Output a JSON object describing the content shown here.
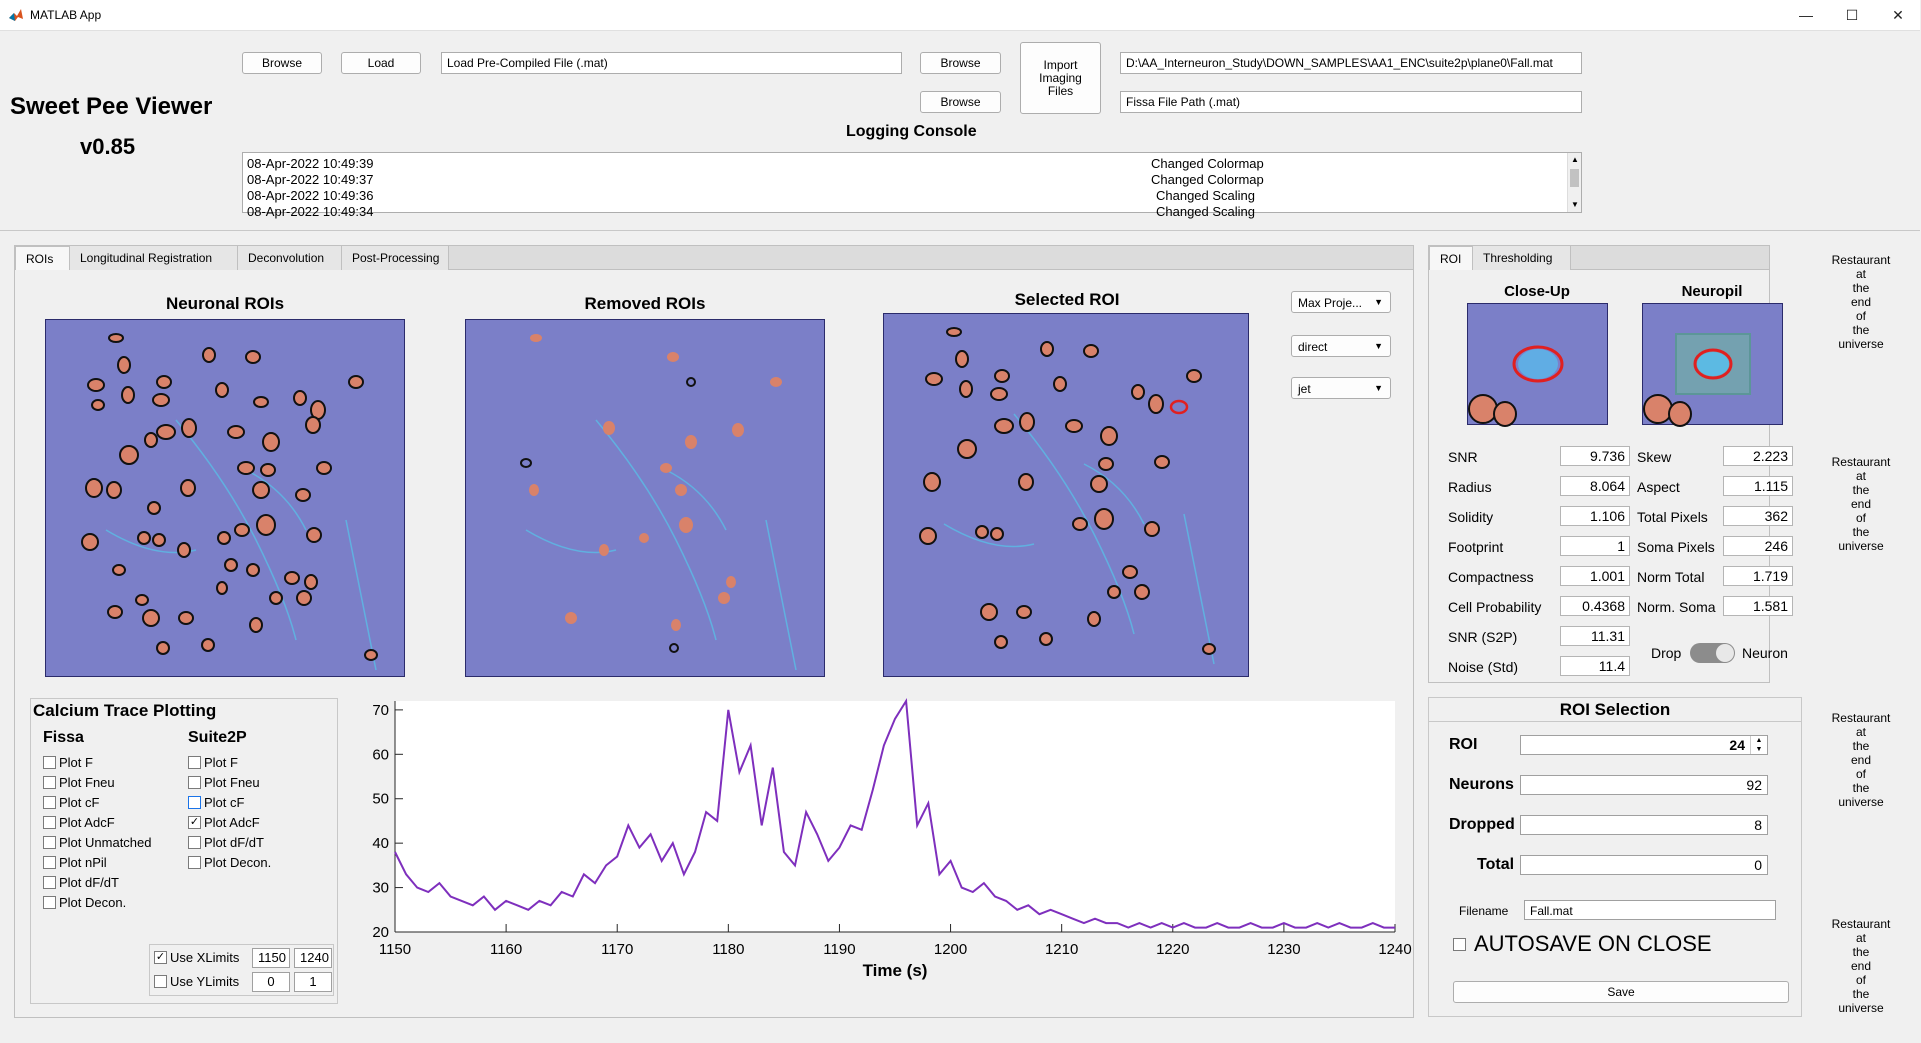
{
  "window": {
    "title": "MATLAB App",
    "minimize": "—",
    "maximize": "☐",
    "close": "✕"
  },
  "header": {
    "app_name": "Sweet Pee Viewer",
    "version": "v0.85",
    "browse_label": "Browse",
    "load_label": "Load",
    "precompiled_placeholder": "Load Pre-Compiled File (.mat)",
    "import_label_1": "Import",
    "import_label_2": "Imaging",
    "import_label_3": "Files",
    "suite2p_path": "D:\\AA_Interneuron_Study\\DOWN_SAMPLES\\AA1_ENC\\suite2p\\plane0\\Fall.mat",
    "fissa_path": "Fissa File Path (.mat)",
    "logging_title": "Logging Console"
  },
  "log": [
    {
      "time": "08-Apr-2022 10:49:39",
      "msg": "Changed Colormap"
    },
    {
      "time": "08-Apr-2022 10:49:37",
      "msg": "Changed Colormap"
    },
    {
      "time": "08-Apr-2022 10:49:36",
      "msg": "Changed Scaling"
    },
    {
      "time": "08-Apr-2022 10:49:34",
      "msg": "Changed Scaling"
    }
  ],
  "main_tabs": [
    "ROIs",
    "Longitudinal Registration",
    "Deconvolution",
    "Post-Processing"
  ],
  "axes_titles": {
    "neuronal": "Neuronal ROIs",
    "removed": "Removed ROIs",
    "selected": "Selected ROI"
  },
  "dropdowns": {
    "projection": "Max Proje...",
    "scaling": "direct",
    "colormap": "jet"
  },
  "right_tabs": [
    "ROI",
    "Thresholding"
  ],
  "closeup_title": "Close-Up",
  "neuropil_title": "Neuropil",
  "metrics_left": [
    {
      "label": "SNR",
      "value": "9.736"
    },
    {
      "label": "Radius",
      "value": "8.064"
    },
    {
      "label": "Solidity",
      "value": "1.106"
    },
    {
      "label": "Footprint",
      "value": "1"
    },
    {
      "label": "Compactness",
      "value": "1.001"
    },
    {
      "label": "Cell Probability",
      "value": "0.4368"
    },
    {
      "label": "SNR (S2P)",
      "value": "11.31"
    },
    {
      "label": "Noise (Std)",
      "value": "11.4"
    }
  ],
  "metrics_right": [
    {
      "label": "Skew",
      "value": "2.223"
    },
    {
      "label": "Aspect",
      "value": "1.115"
    },
    {
      "label": "Total Pixels",
      "value": "362"
    },
    {
      "label": "Soma Pixels",
      "value": "246"
    },
    {
      "label": "Norm Total",
      "value": "1.719"
    },
    {
      "label": "Norm. Soma",
      "value": "1.581"
    }
  ],
  "toggle": {
    "left": "Drop",
    "right": "Neuron"
  },
  "side_labels": [
    "Restaurant",
    "at",
    "the",
    "end",
    "of",
    "the",
    "universe"
  ],
  "trace_panel": {
    "title": "Calcium Trace Plotting",
    "fissa_header": "Fissa",
    "suite2p_header": "Suite2P",
    "fissa_options": [
      "Plot F",
      "Plot Fneu",
      "Plot cF",
      "Plot AdcF",
      "Plot Unmatched",
      "Plot nPil",
      "Plot dF/dT",
      "Plot Decon."
    ],
    "suite2p_options": [
      "Plot F",
      "Plot Fneu",
      "Plot cF",
      "Plot AdcF",
      "Plot dF/dT",
      "Plot Decon."
    ],
    "use_xlimits": "Use XLimits",
    "use_ylimits": "Use YLimits",
    "xlim_min": "1150",
    "xlim_max": "1240",
    "ylim_min": "0",
    "ylim_max": "1"
  },
  "roi_selection": {
    "title": "ROI Selection",
    "roi_label": "ROI",
    "roi_value": "24",
    "neurons_label": "Neurons",
    "neurons_value": "92",
    "dropped_label": "Dropped",
    "dropped_value": "8",
    "total_label": "Total",
    "total_value": "0",
    "filename_label": "Filename",
    "filename_value": "Fall.mat",
    "autosave_label": "AUTOSAVE ON CLOSE",
    "save_label": "Save"
  },
  "chart_data": {
    "type": "line",
    "title": "",
    "xlabel": "Time (s)",
    "ylabel": "",
    "xlim": [
      1150,
      1240
    ],
    "ylim": [
      20,
      72
    ],
    "xticks": [
      1150,
      1160,
      1170,
      1180,
      1190,
      1200,
      1210,
      1220,
      1230,
      1240
    ],
    "yticks": [
      20,
      30,
      40,
      50,
      60,
      70
    ],
    "color": "#7e2fbd",
    "x": [
      1150,
      1151,
      1152,
      1153,
      1154,
      1155,
      1156,
      1157,
      1158,
      1159,
      1160,
      1161,
      1162,
      1163,
      1164,
      1165,
      1166,
      1167,
      1168,
      1169,
      1170,
      1171,
      1172,
      1173,
      1174,
      1175,
      1176,
      1177,
      1178,
      1179,
      1180,
      1181,
      1182,
      1183,
      1184,
      1185,
      1186,
      1187,
      1188,
      1189,
      1190,
      1191,
      1192,
      1193,
      1194,
      1195,
      1196,
      1197,
      1198,
      1199,
      1200,
      1201,
      1202,
      1203,
      1204,
      1205,
      1206,
      1207,
      1208,
      1209,
      1210,
      1211,
      1212,
      1213,
      1214,
      1215,
      1216,
      1217,
      1218,
      1219,
      1220,
      1221,
      1222,
      1223,
      1224,
      1225,
      1226,
      1227,
      1228,
      1229,
      1230,
      1231,
      1232,
      1233,
      1234,
      1235,
      1236,
      1237,
      1238,
      1239,
      1240
    ],
    "y": [
      38,
      33,
      30,
      29,
      31,
      28,
      27,
      26,
      28,
      25,
      27,
      26,
      25,
      27,
      26,
      29,
      28,
      33,
      31,
      35,
      37,
      44,
      39,
      42,
      36,
      40,
      33,
      38,
      47,
      45,
      70,
      56,
      62,
      44,
      57,
      38,
      35,
      47,
      42,
      36,
      39,
      44,
      43,
      52,
      62,
      68,
      72,
      44,
      49,
      33,
      36,
      30,
      29,
      31,
      28,
      27,
      25,
      26,
      24,
      25,
      24,
      23,
      22,
      23,
      22,
      22,
      21,
      22,
      21,
      22,
      21,
      22,
      21,
      21,
      22,
      21,
      21,
      22,
      21,
      21,
      22,
      21,
      21,
      22,
      21,
      22,
      21,
      21,
      22,
      21,
      21
    ]
  }
}
